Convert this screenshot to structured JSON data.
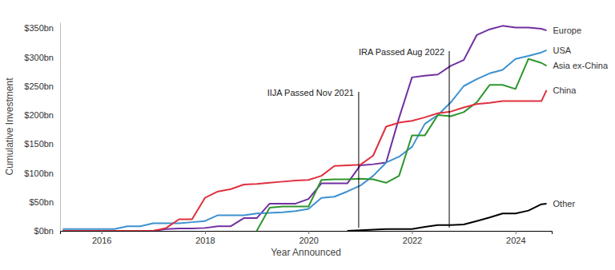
{
  "chart_data": {
    "type": "line",
    "x_label": "Year Announced",
    "y_label": "Cumulative Investment",
    "x": [
      2015.25,
      2015.5,
      2015.75,
      2016,
      2016.25,
      2016.5,
      2016.75,
      2017,
      2017.25,
      2017.5,
      2017.75,
      2018,
      2018.25,
      2018.5,
      2018.75,
      2019,
      2019.25,
      2019.5,
      2019.75,
      2020,
      2020.25,
      2020.5,
      2020.75,
      2021,
      2021.25,
      2021.5,
      2021.75,
      2022,
      2022.25,
      2022.5,
      2022.75,
      2023,
      2023.25,
      2023.5,
      2023.75,
      2024,
      2024.25,
      2024.5,
      2024.6
    ],
    "xlim": [
      2015.2,
      2024.7
    ],
    "xticks": [
      2016,
      2018,
      2020,
      2022,
      2024
    ],
    "ylim": [
      0,
      360
    ],
    "yticks": [
      {
        "value": 0,
        "label": "$0bn"
      },
      {
        "value": 50,
        "label": "$50bn"
      },
      {
        "value": 100,
        "label": "$100bn"
      },
      {
        "value": 150,
        "label": "$150bn"
      },
      {
        "value": 200,
        "label": "$200bn"
      },
      {
        "value": 250,
        "label": "$250bn"
      },
      {
        "value": 300,
        "label": "$300bn"
      },
      {
        "value": 350,
        "label": "$350bn"
      }
    ],
    "grid": false,
    "series": [
      {
        "name": "Europe",
        "color": "#7030a0",
        "values": [
          0,
          0,
          0,
          0,
          0,
          0,
          0,
          0,
          3,
          4,
          4,
          5,
          8,
          8,
          22,
          22,
          47,
          47,
          47,
          55,
          82,
          82,
          82,
          113,
          115,
          118,
          195,
          265,
          268,
          270,
          285,
          295,
          338,
          348,
          354,
          351,
          351,
          349,
          346
        ]
      },
      {
        "name": "USA",
        "color": "#3d91cf",
        "values": [
          3,
          3,
          3,
          3,
          3,
          8,
          8,
          13,
          13,
          13,
          15,
          17,
          27,
          27,
          27,
          30,
          31,
          32,
          34,
          38,
          57,
          59,
          68,
          78,
          95,
          118,
          128,
          145,
          185,
          200,
          222,
          250,
          262,
          272,
          278,
          297,
          302,
          308,
          312
        ]
      },
      {
        "name": "Asia ex-China",
        "color": "#2e962e",
        "values": [
          null,
          null,
          null,
          null,
          null,
          null,
          null,
          null,
          null,
          null,
          null,
          null,
          null,
          null,
          null,
          0,
          40,
          42,
          42,
          42,
          88,
          89,
          89,
          90,
          89,
          83,
          95,
          165,
          165,
          200,
          198,
          205,
          222,
          252,
          252,
          245,
          297,
          290,
          285
        ]
      },
      {
        "name": "China",
        "color": "#e0303f",
        "values": [
          0,
          0,
          0,
          0,
          0,
          0,
          0,
          0,
          5,
          20,
          20,
          57,
          68,
          72,
          80,
          81,
          83,
          85,
          87,
          88,
          95,
          112,
          113,
          114,
          130,
          180,
          187,
          190,
          196,
          203,
          206,
          213,
          219,
          221,
          224,
          224,
          224,
          224,
          243
        ]
      },
      {
        "name": "Other",
        "color": "#000000",
        "values": [
          null,
          null,
          null,
          null,
          null,
          null,
          null,
          null,
          null,
          null,
          null,
          null,
          null,
          null,
          null,
          null,
          null,
          null,
          null,
          null,
          null,
          null,
          0,
          1,
          2,
          3,
          3,
          3,
          7,
          10,
          10,
          11,
          17,
          23,
          30,
          30,
          35,
          46,
          47
        ]
      }
    ],
    "annotations": [
      {
        "text": "IIJA Passed Nov 2021",
        "x": 2020.97
      },
      {
        "text": "IRA Passed Aug 2022",
        "x": 2022.72
      }
    ]
  }
}
